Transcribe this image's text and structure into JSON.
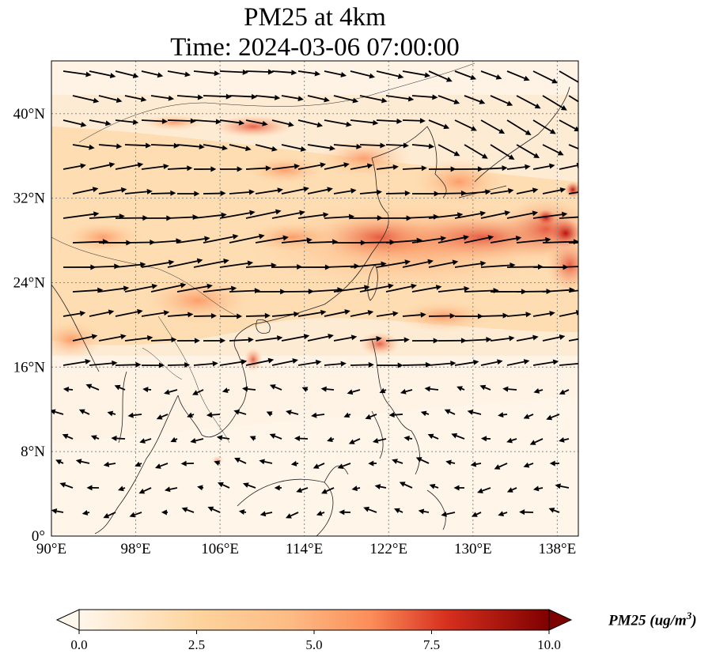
{
  "title": {
    "line1": "PM25 at 4km",
    "line2": "Time: 2024-03-06 07:00:00"
  },
  "map": {
    "extent": {
      "lon_min": 90,
      "lon_max": 140,
      "lat_min": 0,
      "lat_max": 45
    },
    "x_ticks": [
      {
        "value": 90,
        "label": "90°E"
      },
      {
        "value": 98,
        "label": "98°E"
      },
      {
        "value": 106,
        "label": "106°E"
      },
      {
        "value": 114,
        "label": "114°E"
      },
      {
        "value": 122,
        "label": "122°E"
      },
      {
        "value": 130,
        "label": "130°E"
      },
      {
        "value": 138,
        "label": "138°E"
      }
    ],
    "y_ticks": [
      {
        "value": 0,
        "label": "0°"
      },
      {
        "value": 8,
        "label": "8°N"
      },
      {
        "value": 16,
        "label": "16°N"
      },
      {
        "value": 24,
        "label": "24°N"
      },
      {
        "value": 32,
        "label": "32°N"
      },
      {
        "value": 40,
        "label": "40°N"
      }
    ],
    "gridlines": true,
    "colormap": "OrRd",
    "colors": {
      "low": "#fff7ec",
      "mid": "#fdbb84",
      "high": "#ef6548",
      "max": "#7f0000",
      "grid": "#888888",
      "coast": "#222222",
      "arrow": "#000000"
    }
  },
  "colorbar": {
    "ticks": [
      "0.0",
      "2.5",
      "5.0",
      "7.5",
      "10.0"
    ],
    "range": [
      0,
      10
    ],
    "extend": "both",
    "label_text": "PM25 (ug/m",
    "label_sup": "3",
    "label_close": ")"
  }
}
